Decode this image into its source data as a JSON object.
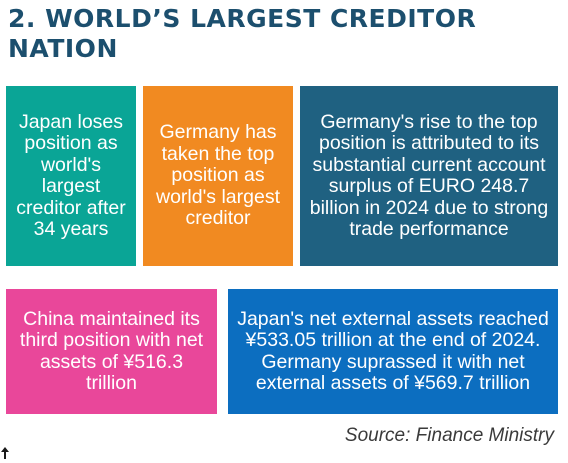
{
  "title": "2. WORLD’S LARGEST CREDITOR NATION",
  "boxes": {
    "japan": "Japan loses position as world's largest creditor after 34 years",
    "germany": "Germany has taken the top position as world's largest creditor",
    "rise": "Germany's rise to the top position is attributed to its substantial current account surplus of EURO 248.7 billion in 2024 due to strong trade performance",
    "china": "China maintained its third position with net assets of ¥516.3 trillion",
    "assets": "Japan's net external assets reached ¥533.05 trillion at the end of 2024. Germany suprassed it with net external assets of ¥569.7 trillion"
  },
  "source": "Source: Finance Ministry",
  "colors": {
    "title": "#1c4f6e",
    "teal": "#0aa596",
    "orange": "#f18a21",
    "navy": "#1f6181",
    "pink": "#e9479a",
    "blue": "#0c6ec0"
  },
  "icons": {
    "corner": "cursor-arrow-icon"
  }
}
